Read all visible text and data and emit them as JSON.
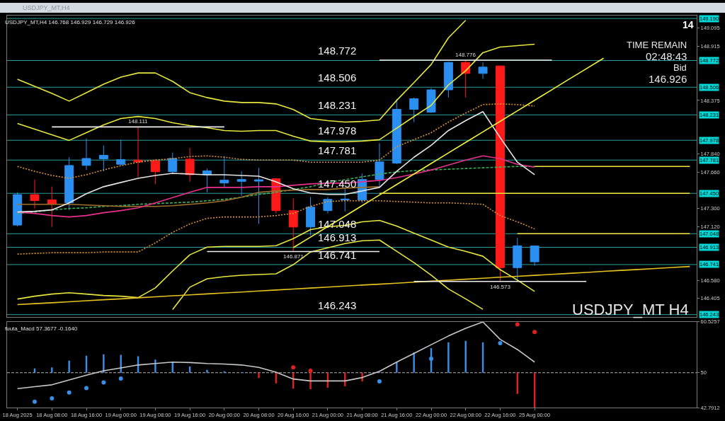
{
  "chart_data": [
    {
      "type": "candlestick",
      "title": "USDJPY_MT,H4 146.768 146.929 146.729 146.926",
      "categories": [
        null,
        null,
        null,
        null,
        null,
        null,
        null,
        null,
        null,
        null,
        null,
        null,
        null,
        null,
        null,
        null,
        null,
        null,
        null,
        null,
        null,
        null,
        null,
        null,
        null,
        null,
        null,
        null,
        null,
        null,
        null,
        null,
        null,
        null,
        null,
        null,
        null,
        null,
        null,
        null
      ],
      "ohlc": [
        [
          147.134,
          147.46,
          147.12,
          147.437
        ],
        [
          147.437,
          147.588,
          147.299,
          147.378
        ],
        [
          147.385,
          147.518,
          147.115,
          147.343
        ],
        [
          147.355,
          147.809,
          147.285,
          147.727
        ],
        [
          147.728,
          147.996,
          147.683,
          147.797
        ],
        [
          147.793,
          147.926,
          147.669,
          147.828
        ],
        [
          147.739,
          147.984,
          147.727,
          147.786
        ],
        [
          147.781,
          148.111,
          147.612,
          147.762
        ],
        [
          147.773,
          147.79,
          147.541,
          147.665
        ],
        [
          147.665,
          147.856,
          147.646,
          147.797
        ],
        [
          147.79,
          147.902,
          147.565,
          147.635
        ],
        [
          147.635,
          147.697,
          147.46,
          147.674
        ],
        [
          147.553,
          147.821,
          147.507,
          147.581
        ],
        [
          147.569,
          147.669,
          147.425,
          147.588
        ],
        [
          147.571,
          147.704,
          147.145,
          147.585
        ],
        [
          147.595,
          147.604,
          147.25,
          147.278
        ],
        [
          147.278,
          147.4,
          146.871,
          147.115
        ],
        [
          147.115,
          147.413,
          147.03,
          147.313
        ],
        [
          147.278,
          147.413,
          147.25,
          147.39
        ],
        [
          147.385,
          147.51,
          147.27,
          147.393
        ],
        [
          147.383,
          147.646,
          147.355,
          147.588
        ],
        [
          147.588,
          147.949,
          147.509,
          147.763
        ],
        [
          147.751,
          148.391,
          147.74,
          148.286
        ],
        [
          148.286,
          148.403,
          148.159,
          148.391
        ],
        [
          148.258,
          148.496,
          148.25,
          148.48
        ],
        [
          148.48,
          148.76,
          148.403,
          148.753
        ],
        [
          148.753,
          148.776,
          148.403,
          148.643
        ],
        [
          148.643,
          148.753,
          148.59,
          148.706
        ],
        [
          148.718,
          148.72,
          146.573,
          146.71
        ],
        [
          146.71,
          147.006,
          146.58,
          146.928
        ],
        [
          146.768,
          146.929,
          146.729,
          146.926
        ],
        null,
        null,
        null,
        null,
        null,
        null,
        null,
        null,
        null
      ],
      "colors": [
        "#2a8ff0",
        "#ff1a1a",
        "#ff1a1a",
        "#2a8ff0",
        "#2a8ff0",
        "#2a8ff0",
        "#2a8ff0",
        "#ff1a1a",
        "#ff1a1a",
        "#2a8ff0",
        "#ff1a1a",
        "#2a8ff0",
        "#2a8ff0",
        "#2a8ff0",
        "#2a8ff0",
        "#ff1a1a",
        "#ff1a1a",
        "#2a8ff0",
        "#2a8ff0",
        "#2a8ff0",
        "#2a8ff0",
        "#2a8ff0",
        "#2a8ff0",
        "#2a8ff0",
        "#2a8ff0",
        "#2a8ff0",
        "#ff1a1a",
        "#2a8ff0",
        "#ff1a1a",
        "#2a8ff0",
        "#2a8ff0",
        null,
        null,
        null,
        null,
        null,
        null,
        null,
        null,
        null
      ],
      "ylim": [
        146.22,
        149.22
      ],
      "yticks": [
        146.405,
        {
          "value": 146.58,
          "label": "146.580"
        },
        {
          "value": 147.12,
          "label": "147.120"
        },
        {
          "value": 147.3,
          "label": "147.300"
        },
        {
          "value": 147.66,
          "label": "147.660"
        },
        {
          "value": 147.84,
          "label": "147.840"
        },
        148.375,
        148.915,
        149.095
      ],
      "series": [
        {
          "type": "line",
          "color": "#e6e63c",
          "values": [
            148.585,
            148.515,
            148.445,
            148.368,
            148.452,
            148.536,
            148.606,
            148.648,
            148.648,
            148.564,
            148.452,
            148.403,
            148.368,
            148.354,
            148.354,
            148.34,
            148.284,
            148.194,
            148.173,
            148.159,
            148.166,
            148.18,
            148.375,
            148.552,
            148.732,
            148.997,
            149.172,
            null,
            null,
            null,
            null,
            null,
            null,
            null,
            null,
            null,
            null,
            null,
            null,
            null
          ]
        },
        {
          "type": "line",
          "color": "#e6e63c",
          "values": [
            148.145,
            148.089,
            148.033,
            147.977,
            148.054,
            148.131,
            148.194,
            148.215,
            148.194,
            148.152,
            148.124,
            148.103,
            148.075,
            148.068,
            148.075,
            148.075,
            148.019,
            147.97,
            147.963,
            147.963,
            147.97,
            147.984,
            148.098,
            148.214,
            148.326,
            148.529,
            148.669,
            148.85,
            148.906,
            148.92,
            148.934,
            null,
            null,
            null,
            null,
            null,
            null,
            null,
            null,
            null
          ]
        },
        {
          "type": "line",
          "color": "#e6e63c",
          "values": [
            146.398,
            146.426,
            146.447,
            146.46,
            146.447,
            146.433,
            146.426,
            146.412,
            146.509,
            146.677,
            146.838,
            146.915,
            146.922,
            146.922,
            146.922,
            146.929,
            146.999,
            147.089,
            147.117,
            147.131,
            147.166,
            147.18,
            147.124,
            147.054,
            146.985,
            146.915,
            146.873,
            146.824,
            146.691,
            146.586,
            146.474,
            null,
            null,
            null,
            null,
            null,
            null,
            null,
            null,
            null
          ]
        },
        {
          "type": "line",
          "color": "#e6e63c",
          "values": [
            null,
            null,
            null,
            null,
            null,
            null,
            null,
            null,
            null,
            146.293,
            146.516,
            146.6,
            146.621,
            146.635,
            146.642,
            146.649,
            146.74,
            146.866,
            146.908,
            146.95,
            146.978,
            146.985,
            146.873,
            146.761,
            146.635,
            146.498,
            146.4,
            146.296,
            null,
            null,
            null,
            null,
            null,
            null,
            null,
            null,
            null,
            null,
            null,
            null
          ]
        },
        {
          "type": "line",
          "color": "#d9913a",
          "line_style": "dotted",
          "values": [
            147.718,
            147.669,
            147.628,
            147.6,
            147.635,
            147.683,
            147.725,
            147.76,
            147.781,
            147.795,
            147.816,
            147.823,
            147.809,
            147.788,
            147.781,
            147.781,
            147.781,
            147.76,
            147.76,
            147.76,
            147.76,
            147.781,
            147.914,
            147.984,
            148.054,
            148.159,
            148.249,
            148.333,
            148.34,
            148.333,
            148.319,
            null,
            null,
            null,
            null,
            null,
            null,
            null,
            null,
            null
          ]
        },
        {
          "type": "line",
          "color": "#d9913a",
          "line_style": "dotted",
          "values": [
            146.845,
            146.852,
            146.859,
            146.859,
            146.859,
            146.866,
            146.866,
            146.866,
            146.957,
            147.062,
            147.145,
            147.201,
            147.215,
            147.215,
            147.215,
            147.229,
            147.25,
            147.32,
            147.369,
            147.376,
            147.376,
            147.376,
            147.369,
            147.362,
            147.355,
            147.355,
            147.348,
            147.341,
            147.229,
            147.166,
            147.096,
            null,
            null,
            null,
            null,
            null,
            null,
            null,
            null,
            null
          ]
        },
        {
          "type": "line",
          "color": "#3fae5c",
          "line_style": "dashed",
          "values": [
            147.25,
            147.264,
            147.285,
            147.299,
            147.306,
            147.32,
            147.327,
            147.341,
            147.348,
            147.355,
            147.362,
            147.376,
            147.39,
            147.411,
            147.439,
            147.46,
            147.488,
            147.516,
            147.558,
            147.586,
            147.614,
            147.642,
            147.663,
            147.676,
            147.683,
            147.69,
            147.697,
            147.704,
            147.711,
            147.718,
            147.718,
            null,
            null,
            null,
            null,
            null,
            null,
            null,
            null,
            null
          ]
        },
        {
          "type": "line",
          "color": "#a0702a",
          "values": [
            147.341,
            147.341,
            147.341,
            147.341,
            147.334,
            147.327,
            147.32,
            147.32,
            147.32,
            147.327,
            147.341,
            147.355,
            147.376,
            147.411,
            147.46,
            147.474,
            147.481,
            147.488,
            147.488,
            147.502,
            147.509,
            147.516,
            null,
            null,
            null,
            null,
            null,
            null,
            null,
            null,
            null,
            null,
            null,
            null,
            null,
            null,
            null,
            null,
            null,
            null
          ]
        },
        {
          "type": "line",
          "color": "#e8308c",
          "values": [
            147.264,
            147.25,
            147.229,
            147.215,
            147.229,
            147.257,
            147.278,
            147.306,
            147.355,
            147.407,
            147.46,
            147.509,
            147.509,
            147.509,
            147.516,
            147.516,
            147.53,
            147.544,
            147.551,
            147.551,
            147.565,
            147.579,
            147.607,
            147.642,
            147.683,
            147.732,
            147.781,
            147.823,
            147.795,
            147.739,
            147.711,
            null,
            null,
            null,
            null,
            null,
            null,
            null,
            null,
            null
          ]
        },
        {
          "type": "line",
          "color": "#e6e6e6",
          "values": [
            147.264,
            147.271,
            147.285,
            147.355,
            147.446,
            147.516,
            147.558,
            147.6,
            147.628,
            147.649,
            147.642,
            147.635,
            147.635,
            147.628,
            147.621,
            147.565,
            147.495,
            147.453,
            147.439,
            147.439,
            147.474,
            147.509,
            147.669,
            147.809,
            147.928,
            148.075,
            148.173,
            148.263,
            148.005,
            147.76,
            147.635,
            null,
            null,
            null,
            null,
            null,
            null,
            null,
            null,
            null
          ]
        },
        {
          "type": "line",
          "color": "#f2f23a",
          "values": [
            null,
            null,
            null,
            null,
            null,
            null,
            null,
            null,
            null,
            null,
            null,
            null,
            null,
            null,
            null,
            null,
            146.909,
            147.014,
            147.119,
            147.223,
            147.328,
            147.433,
            147.538,
            147.642,
            147.747,
            147.852,
            147.957,
            148.062,
            148.166,
            148.271,
            148.376,
            148.481,
            148.586,
            148.69,
            148.795,
            null,
            null,
            null,
            null,
            null
          ]
        },
        {
          "type": "line",
          "color": "#e6c21e",
          "values": [
            146.342,
            146.352,
            146.361,
            146.371,
            146.381,
            146.391,
            146.4,
            146.41,
            146.42,
            146.43,
            146.439,
            146.449,
            146.459,
            146.468,
            146.478,
            146.488,
            146.498,
            146.507,
            146.517,
            146.527,
            146.537,
            146.546,
            146.556,
            146.566,
            146.576,
            146.585,
            146.595,
            146.605,
            146.615,
            146.624,
            146.634,
            146.644,
            146.653,
            146.663,
            146.673,
            146.683,
            146.692,
            146.702,
            146.712,
            146.722
          ]
        },
        {
          "type": "line",
          "color": "#f2e23a",
          "values": [
            null,
            null,
            null,
            null,
            null,
            null,
            null,
            null,
            null,
            null,
            null,
            null,
            null,
            null,
            null,
            null,
            null,
            null,
            null,
            null,
            null,
            null,
            null,
            null,
            null,
            null,
            null,
            null,
            null,
            null,
            147.718,
            147.718,
            147.718,
            147.718,
            147.718,
            147.718,
            147.718,
            147.718,
            147.718,
            147.718
          ]
        },
        {
          "type": "line",
          "color": "#f2e23a",
          "values": [
            null,
            null,
            null,
            null,
            null,
            null,
            null,
            null,
            null,
            null,
            null,
            null,
            null,
            null,
            null,
            null,
            null,
            null,
            null,
            null,
            null,
            147.45,
            147.45,
            147.45,
            147.45,
            147.45,
            147.45,
            147.45,
            147.45,
            147.45,
            147.45,
            147.45,
            147.45,
            147.45,
            147.45,
            147.45,
            147.45,
            147.45,
            147.45,
            147.45
          ]
        },
        {
          "type": "line",
          "color": "#f2e23a",
          "values": [
            null,
            null,
            null,
            null,
            null,
            null,
            null,
            null,
            null,
            null,
            null,
            null,
            null,
            null,
            null,
            null,
            null,
            null,
            null,
            null,
            null,
            null,
            null,
            null,
            null,
            null,
            null,
            null,
            null,
            147.048,
            147.048,
            147.048,
            147.048,
            147.048,
            147.048,
            147.048,
            147.048,
            147.048,
            147.048,
            147.048
          ]
        },
        {
          "type": "line",
          "color": "#f0f0f0",
          "values": [
            null,
            null,
            148.111,
            148.111,
            148.111,
            148.111,
            148.111,
            148.111,
            148.111,
            148.111,
            148.111,
            148.111,
            148.111,
            null,
            null,
            null,
            null,
            null,
            null,
            null,
            null,
            null,
            null,
            null,
            null,
            null,
            null,
            null,
            null,
            null,
            null,
            null,
            null,
            null,
            null,
            null,
            null,
            null,
            null,
            null
          ],
          "value_labels": [
            null,
            null,
            null,
            null,
            null,
            null,
            null,
            "148.111",
            null,
            null,
            null,
            null,
            null,
            null,
            null,
            null,
            null,
            null,
            null,
            null,
            null,
            null,
            null,
            null,
            null,
            null,
            null,
            null,
            null,
            null,
            null,
            null,
            null,
            null,
            null,
            null,
            null,
            null,
            null,
            null
          ]
        },
        {
          "type": "line",
          "color": "#f0f0f0",
          "values": [
            null,
            null,
            null,
            null,
            null,
            null,
            null,
            null,
            null,
            null,
            null,
            null,
            null,
            null,
            null,
            null,
            null,
            null,
            null,
            null,
            null,
            148.776,
            148.776,
            148.776,
            148.776,
            148.776,
            148.776,
            148.776,
            148.776,
            148.776,
            148.776,
            148.776,
            null,
            null,
            null,
            null,
            null,
            null,
            null,
            null
          ],
          "value_labels": [
            null,
            null,
            null,
            null,
            null,
            null,
            null,
            null,
            null,
            null,
            null,
            null,
            null,
            null,
            null,
            null,
            null,
            null,
            null,
            null,
            null,
            null,
            null,
            null,
            null,
            null,
            "148.776",
            null,
            null,
            null,
            null,
            null,
            null,
            null,
            null,
            null,
            null,
            null,
            null,
            null
          ]
        },
        {
          "type": "line",
          "color": "#f0f0f0",
          "values": [
            null,
            null,
            null,
            null,
            null,
            null,
            null,
            null,
            null,
            null,
            null,
            146.871,
            146.871,
            146.871,
            146.871,
            146.871,
            146.871,
            146.871,
            146.871,
            146.871,
            146.871,
            146.871,
            null,
            null,
            null,
            null,
            null,
            null,
            null,
            null,
            null,
            null,
            null,
            null,
            null,
            null,
            null,
            null,
            null,
            null
          ],
          "value_labels": [
            null,
            null,
            null,
            null,
            null,
            null,
            null,
            null,
            null,
            null,
            null,
            null,
            null,
            null,
            null,
            null,
            "146.871",
            null,
            null,
            null,
            null,
            null,
            null,
            null,
            null,
            null,
            null,
            null,
            null,
            null,
            null,
            null,
            null,
            null,
            null,
            null,
            null,
            null,
            null,
            null
          ]
        },
        {
          "type": "line",
          "color": "#f0f0f0",
          "values": [
            null,
            null,
            null,
            null,
            null,
            null,
            null,
            null,
            null,
            null,
            null,
            null,
            null,
            null,
            null,
            null,
            null,
            null,
            null,
            null,
            null,
            null,
            null,
            146.573,
            146.573,
            146.573,
            146.573,
            146.573,
            146.573,
            146.573,
            146.573,
            146.573,
            146.573,
            146.573,
            null,
            null,
            null,
            null,
            null,
            null
          ],
          "value_labels": [
            null,
            null,
            null,
            null,
            null,
            null,
            null,
            null,
            null,
            null,
            null,
            null,
            null,
            null,
            null,
            null,
            null,
            null,
            null,
            null,
            null,
            null,
            null,
            null,
            null,
            null,
            null,
            null,
            "146.573",
            null,
            null,
            null,
            null,
            null,
            null,
            null,
            null,
            null,
            null,
            null
          ]
        }
      ],
      "ref_lines": [
        {
          "axis": "y",
          "value": 149.19,
          "label": "149.190",
          "color": "#2a9d9d"
        },
        {
          "axis": "y",
          "value": 148.772,
          "label": "148.772",
          "color": "#2a9d9d"
        },
        {
          "axis": "y",
          "value": 148.506,
          "label": "148.506",
          "color": "#2a9d9d"
        },
        {
          "axis": "y",
          "value": 148.231,
          "label": "148.231",
          "color": "#2a9d9d"
        },
        {
          "axis": "y",
          "value": 147.978,
          "label": "147.978",
          "color": "#2a9d9d"
        },
        {
          "axis": "y",
          "value": 147.781,
          "label": "147.781",
          "color": "#2a9d9d"
        },
        {
          "axis": "y",
          "value": 147.45,
          "label": "147.450",
          "color": "#2a9d9d"
        },
        {
          "axis": "y",
          "value": 147.048,
          "label": "147.048",
          "color": "#2a9d9d"
        },
        {
          "axis": "y",
          "value": 146.913,
          "label": "146.913",
          "color": "#2a9d9d"
        },
        {
          "axis": "y",
          "value": 146.741,
          "label": "146.741",
          "color": "#2a9d9d"
        },
        {
          "axis": "y",
          "value": 146.243,
          "label": "146.243",
          "color": "#2a9d9d"
        }
      ],
      "annotations": [
        "USDJPY_MT,H4",
        "14",
        "TIME REMAIN",
        "02:48:43",
        "Bid",
        "146.926",
        "USDJPY_MT H4",
        {
          "text": "148.772",
          "y": 148.772
        },
        {
          "text": "148.506",
          "y": 148.506
        },
        {
          "text": "148.231",
          "y": 148.231
        },
        {
          "text": "147.978",
          "y": 147.978
        },
        {
          "text": "147.781",
          "y": 147.781
        },
        {
          "text": "147.450",
          "y": 147.45
        },
        {
          "text": "147.048",
          "y": 147.048
        },
        {
          "text": "146.913",
          "y": 146.913
        },
        {
          "text": "146.741",
          "y": 146.741
        },
        {
          "text": "146.243",
          "y": 146.243
        }
      ]
    },
    {
      "type": "bar",
      "title": "fuuta_Macd 57.3677 -0.1640",
      "categories": [
        "18 Aug 2025",
        null,
        "18 Aug 08:00",
        null,
        "18 Aug 16:00",
        null,
        "19 Aug 00:00",
        null,
        "19 Aug 08:00",
        null,
        "19 Aug 16:00",
        null,
        "20 Aug 00:00",
        null,
        "20 Aug 08:00",
        null,
        "20 Aug 16:00",
        null,
        "21 Aug 00:00",
        null,
        "21 Aug 08:00",
        null,
        "21 Aug 16:00",
        null,
        "22 Aug 00:00",
        null,
        "22 Aug 08:00",
        null,
        "22 Aug 16:00",
        null,
        "25 Aug 00:00",
        null,
        null,
        null,
        null,
        null,
        null,
        null,
        null,
        null
      ],
      "ylim": [
        42.7912,
        60.5257
      ],
      "yticks": [
        42.7912,
        50,
        60.5257
      ],
      "series": [
        {
          "base": [
            null,
            50,
            50,
            50,
            50,
            50,
            50,
            50,
            50,
            50,
            50,
            50,
            50,
            50,
            50,
            50,
            50,
            50,
            50,
            50,
            50,
            50,
            50,
            50,
            50,
            50,
            50,
            50,
            null,
            50,
            50,
            null,
            null,
            null,
            null,
            null,
            null,
            null,
            null,
            null
          ],
          "colors": [
            null,
            "#3a8ee6",
            "#3a8ee6",
            "#3a8ee6",
            "#3a8ee6",
            "#3a8ee6",
            "#3a8ee6",
            "#3a8ee6",
            "#3a8ee6",
            "#3a8ee6",
            "#3a8ee6",
            "#3a8ee6",
            "#3a8ee6",
            "#3a8ee6",
            "#e02020",
            "#e02020",
            "#e02020",
            "#e02020",
            "#e02020",
            "#e02020",
            "#e02020",
            "#3a8ee6",
            "#3a8ee6",
            "#3a8ee6",
            "#3a8ee6",
            "#3a8ee6",
            "#3a8ee6",
            "#3a8ee6",
            null,
            "#e02020",
            "#e02020",
            null,
            null,
            null,
            null,
            null,
            null,
            null,
            null,
            null
          ],
          "values": [
            null,
            0.9,
            1.1,
            2.5,
            3.5,
            3.8,
            3.7,
            3.4,
            2.7,
            2.2,
            1.3,
            0.6,
            0.3,
            0.1,
            -1.1,
            -2.2,
            -3.3,
            -3.4,
            -3.1,
            -2.8,
            -1.8,
            0.1,
            2.2,
            4.2,
            5.1,
            6.3,
            6.6,
            6.3,
            null,
            -4.4,
            -7.2,
            null,
            null,
            null,
            null,
            null,
            null,
            null,
            null,
            null
          ]
        },
        {
          "type": "line",
          "color": "#c8c8c8",
          "values": [
            46.7,
            47.1,
            47.5,
            48.5,
            49.5,
            50.4,
            51.0,
            51.6,
            51.9,
            52.2,
            52.1,
            51.9,
            51.8,
            51.6,
            51.1,
            50.1,
            48.7,
            48.3,
            48.3,
            48.3,
            49.0,
            50.3,
            52.2,
            54.0,
            55.8,
            57.6,
            59.2,
            60.5,
            56.9,
            54.8,
            52.2,
            null,
            null,
            null,
            null,
            null,
            null,
            null,
            null,
            null
          ]
        },
        {
          "type": "scatter",
          "marker": "circle",
          "colors": [
            null,
            "#3a8ee6",
            "#3a8ee6",
            "#3a8ee6",
            "#3a8ee6",
            "#3a8ee6",
            "#3a8ee6",
            null,
            null,
            null,
            null,
            null,
            null,
            null,
            null,
            null,
            "#e02020",
            "#e02020",
            null,
            null,
            null,
            "#3a8ee6",
            null,
            null,
            "#3a8ee6",
            null,
            null,
            null,
            "#3a8ee6",
            "#e02020",
            "#e02020",
            null,
            null,
            null,
            null,
            null,
            null,
            null,
            null,
            null
          ],
          "values": [
            null,
            44.0,
            44.7,
            45.9,
            46.8,
            48.0,
            48.8,
            null,
            null,
            null,
            null,
            null,
            null,
            null,
            null,
            null,
            51.1,
            50.4,
            null,
            null,
            null,
            48.2,
            null,
            null,
            52.9,
            null,
            null,
            null,
            56.1,
            60.0,
            58.4,
            null,
            null,
            null,
            null,
            null,
            null,
            null,
            null,
            null
          ]
        }
      ],
      "ref_lines": [
        {
          "axis": "y",
          "value": 50,
          "color": "#b4b4b4",
          "line_style": "dashed"
        }
      ]
    }
  ]
}
